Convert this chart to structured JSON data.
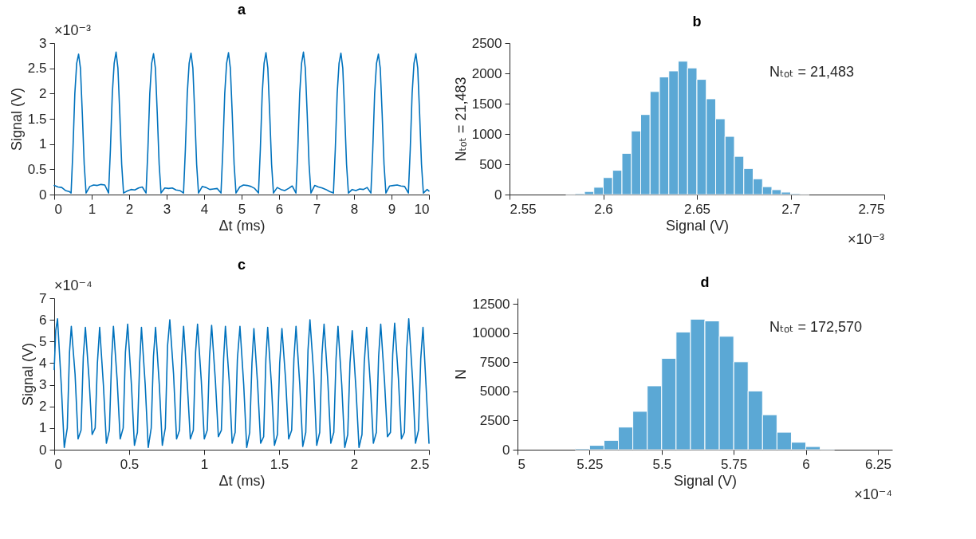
{
  "chart_data": [
    {
      "type": "line",
      "title": "a",
      "xlabel": "Δt (ms)",
      "ylabel": "Signal (V)",
      "color": "#0072bd",
      "xlim": [
        0,
        10
      ],
      "ylim": [
        0,
        3
      ],
      "xticks": [
        0,
        1,
        2,
        3,
        4,
        5,
        6,
        7,
        8,
        9,
        10
      ],
      "yticks": [
        0,
        0.5,
        1,
        1.5,
        2,
        2.5,
        3
      ],
      "annotations": [
        "×10⁻³"
      ],
      "x": [
        0,
        0.1,
        0.2,
        0.3,
        0.4,
        0.45,
        0.5,
        0.55,
        0.6,
        0.65,
        0.7,
        0.75,
        0.8,
        0.85,
        0.95,
        1.05,
        1.15,
        1.25,
        1.35,
        1.45,
        1.5,
        1.55,
        1.6,
        1.65,
        1.7,
        1.75,
        1.8,
        1.85,
        1.95,
        2.05,
        2.15,
        2.25,
        2.35,
        2.45,
        2.5,
        2.55,
        2.6,
        2.65,
        2.7,
        2.75,
        2.8,
        2.85,
        2.95,
        3.05,
        3.15,
        3.25,
        3.35,
        3.45,
        3.5,
        3.55,
        3.6,
        3.65,
        3.7,
        3.75,
        3.8,
        3.85,
        3.95,
        4.05,
        4.15,
        4.25,
        4.35,
        4.45,
        4.5,
        4.55,
        4.6,
        4.65,
        4.7,
        4.75,
        4.8,
        4.85,
        4.95,
        5.05,
        5.15,
        5.25,
        5.35,
        5.45,
        5.5,
        5.55,
        5.6,
        5.65,
        5.7,
        5.75,
        5.8,
        5.85,
        5.95,
        6.05,
        6.15,
        6.25,
        6.35,
        6.45,
        6.5,
        6.55,
        6.6,
        6.65,
        6.7,
        6.75,
        6.8,
        6.85,
        6.95,
        7.05,
        7.15,
        7.25,
        7.35,
        7.45,
        7.5,
        7.55,
        7.6,
        7.65,
        7.7,
        7.75,
        7.8,
        7.85,
        7.95,
        8.05,
        8.15,
        8.25,
        8.35,
        8.45,
        8.5,
        8.55,
        8.6,
        8.65,
        8.7,
        8.75,
        8.8,
        8.85,
        8.95,
        9.05,
        9.15,
        9.25,
        9.35,
        9.45,
        9.5,
        9.55,
        9.6,
        9.65,
        9.7,
        9.75,
        9.8,
        9.85,
        9.95,
        10
      ],
      "values": [
        0.18,
        0.15,
        0.14,
        0.08,
        0.06,
        0.03,
        0.9,
        2.0,
        2.6,
        2.78,
        2.5,
        1.6,
        0.6,
        0.03,
        0.16,
        0.19,
        0.18,
        0.2,
        0.19,
        0.03,
        0.9,
        2.0,
        2.6,
        2.82,
        2.5,
        1.6,
        0.6,
        0.03,
        0.07,
        0.1,
        0.09,
        0.13,
        0.15,
        0.03,
        0.9,
        2.0,
        2.6,
        2.79,
        2.5,
        1.6,
        0.6,
        0.03,
        0.13,
        0.12,
        0.13,
        0.09,
        0.08,
        0.03,
        0.9,
        2.0,
        2.6,
        2.8,
        2.5,
        1.6,
        0.6,
        0.03,
        0.16,
        0.14,
        0.1,
        0.11,
        0.12,
        0.03,
        0.9,
        2.0,
        2.6,
        2.81,
        2.5,
        1.6,
        0.6,
        0.03,
        0.15,
        0.19,
        0.18,
        0.16,
        0.12,
        0.03,
        0.9,
        2.0,
        2.6,
        2.81,
        2.5,
        1.6,
        0.6,
        0.03,
        0.14,
        0.1,
        0.08,
        0.12,
        0.17,
        0.03,
        0.9,
        2.0,
        2.6,
        2.82,
        2.5,
        1.6,
        0.6,
        0.03,
        0.18,
        0.15,
        0.13,
        0.1,
        0.06,
        0.03,
        0.9,
        2.0,
        2.6,
        2.8,
        2.5,
        1.6,
        0.6,
        0.03,
        0.1,
        0.08,
        0.11,
        0.1,
        0.14,
        0.03,
        0.9,
        2.0,
        2.6,
        2.78,
        2.5,
        1.6,
        0.6,
        0.03,
        0.17,
        0.18,
        0.19,
        0.17,
        0.16,
        0.03,
        0.9,
        2.0,
        2.6,
        2.79,
        2.5,
        1.6,
        0.6,
        0.03,
        0.1,
        0.07
      ]
    },
    {
      "type": "histogram",
      "title": "b",
      "xlabel": "Signal (V)",
      "ylabel": "Nₜₒₜ = 21,483",
      "color": "#5ba8d5",
      "xlim": [
        2.55,
        2.75
      ],
      "ylim": [
        0,
        2500
      ],
      "xticks": [
        2.55,
        2.6,
        2.65,
        2.7,
        2.75
      ],
      "yticks": [
        0,
        500,
        1000,
        1500,
        2000,
        2500
      ],
      "annotations": [
        "×10⁻³",
        "Nₜₒₜ = 21,483"
      ],
      "bins": [
        2.58,
        2.585,
        2.59,
        2.595,
        2.6,
        2.605,
        2.61,
        2.615,
        2.62,
        2.625,
        2.63,
        2.635,
        2.64,
        2.645,
        2.65,
        2.655,
        2.66,
        2.665,
        2.67,
        2.675,
        2.68,
        2.685,
        2.69,
        2.695,
        2.7,
        2.705,
        2.71
      ],
      "values": [
        5,
        15,
        50,
        120,
        280,
        400,
        680,
        1050,
        1320,
        1700,
        1940,
        2040,
        2200,
        2090,
        1900,
        1580,
        1250,
        960,
        630,
        430,
        260,
        130,
        80,
        40,
        15,
        8
      ]
    },
    {
      "type": "line",
      "title": "c",
      "xlabel": "Δt (ms)",
      "ylabel": "Signal (V)",
      "color": "#0072bd",
      "xlim": [
        0,
        2.5
      ],
      "ylim": [
        0,
        7
      ],
      "xticks": [
        0,
        0.5,
        1,
        1.5,
        2,
        2.5
      ],
      "yticks": [
        0,
        1,
        2,
        3,
        4,
        5,
        6,
        7
      ],
      "annotations": [
        "×10⁻⁴"
      ],
      "x": [
        0,
        0.01,
        0.022,
        0.047,
        0.067,
        0.087,
        0.102,
        0.114,
        0.139,
        0.159,
        0.179,
        0.194,
        0.208,
        0.233,
        0.253,
        0.273,
        0.288,
        0.303,
        0.328,
        0.348,
        0.368,
        0.383,
        0.395,
        0.42,
        0.44,
        0.46,
        0.475,
        0.49,
        0.515,
        0.535,
        0.555,
        0.57,
        0.582,
        0.607,
        0.627,
        0.647,
        0.662,
        0.676,
        0.701,
        0.721,
        0.741,
        0.756,
        0.771,
        0.796,
        0.816,
        0.836,
        0.851,
        0.863,
        0.888,
        0.908,
        0.928,
        0.943,
        0.956,
        0.981,
        1.001,
        1.021,
        1.036,
        1.05,
        1.075,
        1.095,
        1.115,
        1.13,
        1.142,
        1.167,
        1.187,
        1.207,
        1.222,
        1.239,
        1.264,
        1.284,
        1.304,
        1.319,
        1.332,
        1.357,
        1.377,
        1.397,
        1.412,
        1.424,
        1.449,
        1.469,
        1.489,
        1.504,
        1.519,
        1.544,
        1.564,
        1.584,
        1.599,
        1.613,
        1.638,
        1.658,
        1.678,
        1.693,
        1.706,
        1.731,
        1.751,
        1.771,
        1.786,
        1.8,
        1.825,
        1.845,
        1.865,
        1.88,
        1.893,
        1.918,
        1.938,
        1.958,
        1.973,
        1.988,
        2.013,
        2.033,
        2.053,
        2.068,
        2.084,
        2.109,
        2.129,
        2.149,
        2.164,
        2.178,
        2.203,
        2.223,
        2.243,
        2.258,
        2.271,
        2.296,
        2.316,
        2.336,
        2.351,
        2.365,
        2.39,
        2.41,
        2.43,
        2.445,
        2.46,
        2.48,
        2.5
      ],
      "values": [
        3.7,
        5.5,
        6.05,
        3.0,
        0.1,
        1.0,
        4.5,
        5.7,
        3.5,
        0.5,
        0.9,
        4.3,
        5.65,
        3.2,
        0.7,
        1.0,
        4.0,
        5.65,
        3.0,
        0.3,
        0.9,
        4.2,
        5.7,
        3.2,
        0.5,
        1.0,
        4.5,
        5.8,
        3.0,
        0.2,
        0.8,
        4.0,
        5.65,
        3.0,
        0.1,
        1.0,
        4.3,
        5.65,
        3.0,
        0.2,
        1.0,
        4.8,
        6.0,
        3.5,
        0.5,
        0.9,
        4.3,
        5.7,
        3.0,
        0.5,
        0.9,
        4.5,
        5.8,
        3.2,
        0.5,
        0.9,
        4.3,
        5.75,
        3.2,
        0.6,
        0.9,
        4.2,
        5.7,
        3.2,
        0.3,
        0.8,
        4.2,
        5.7,
        3.0,
        0.1,
        0.8,
        4.0,
        5.6,
        3.0,
        0.3,
        0.6,
        4.2,
        5.65,
        3.0,
        0.2,
        0.7,
        4.0,
        5.6,
        3.2,
        0.5,
        0.9,
        4.2,
        5.7,
        3.0,
        0.15,
        0.8,
        4.6,
        6.0,
        3.5,
        0.2,
        0.8,
        4.4,
        5.8,
        3.2,
        0.3,
        0.8,
        4.2,
        5.7,
        3.0,
        0.1,
        0.7,
        4.0,
        5.5,
        2.8,
        0.1,
        0.7,
        4.0,
        5.65,
        3.0,
        0.3,
        0.8,
        4.3,
        5.8,
        3.2,
        0.6,
        0.8,
        4.4,
        5.85,
        3.3,
        0.5,
        0.8,
        4.6,
        6.05,
        3.3,
        0.3,
        0.9,
        4.2,
        5.65,
        3.0,
        0.3
      ]
    },
    {
      "type": "histogram",
      "title": "d",
      "xlabel": "Signal (V)",
      "ylabel": "N",
      "color": "#5ba8d5",
      "xlim": [
        5,
        6.3
      ],
      "ylim": [
        0,
        13000
      ],
      "xticks": [
        5,
        5.25,
        5.5,
        5.75,
        6,
        6.25
      ],
      "yticks": [
        0,
        2500,
        5000,
        7500,
        10000,
        12500
      ],
      "annotations": [
        "×10⁻⁴",
        "Nₜₒₜ = 172,570"
      ],
      "bins": [
        5.2,
        5.25,
        5.3,
        5.35,
        5.4,
        5.45,
        5.5,
        5.55,
        5.6,
        5.65,
        5.7,
        5.75,
        5.8,
        5.85,
        5.9,
        5.95,
        6.0,
        6.05,
        6.1
      ],
      "values": [
        100,
        370,
        800,
        1940,
        3290,
        5480,
        7840,
        10100,
        11200,
        11050,
        9730,
        7540,
        5040,
        3000,
        1500,
        640,
        270,
        50
      ]
    }
  ]
}
